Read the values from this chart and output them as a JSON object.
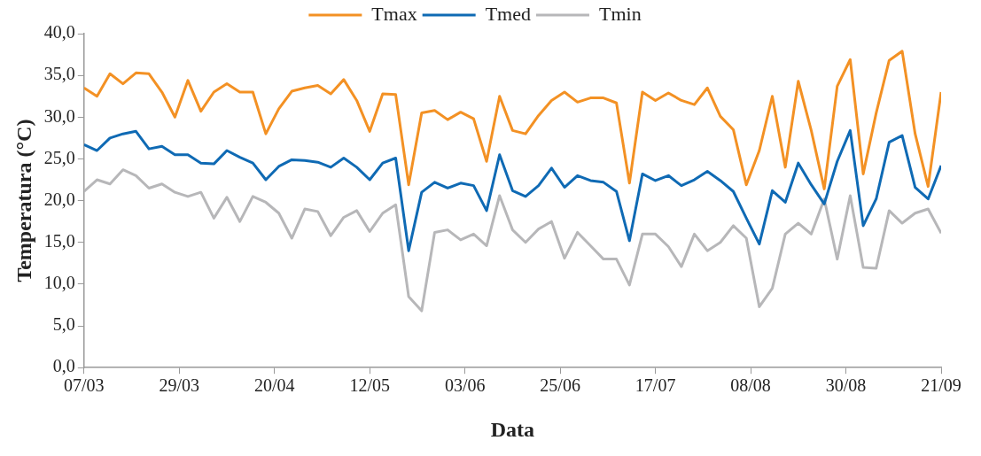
{
  "chart_data": {
    "type": "line",
    "xlabel": "Data",
    "ylabel": "Temperatura (°C)",
    "x": [
      "--03-07",
      "--03-10",
      "--03-13",
      "--03-16",
      "--03-19",
      "--03-22",
      "--03-25",
      "--03-28",
      "--03-31",
      "--04-03",
      "--04-06",
      "--04-09",
      "--04-12",
      "--04-15",
      "--04-18",
      "--04-21",
      "--04-24",
      "--04-27",
      "--04-30",
      "--05-03",
      "--05-06",
      "--05-09",
      "--05-12",
      "--05-15",
      "--05-18",
      "--05-21",
      "--05-24",
      "--05-27",
      "--05-30",
      "--06-02",
      "--06-05",
      "--06-08",
      "--06-11",
      "--06-14",
      "--06-17",
      "--06-20",
      "--06-23",
      "--06-26",
      "--06-29",
      "--07-02",
      "--07-05",
      "--07-08",
      "--07-11",
      "--07-14",
      "--07-17",
      "--07-20",
      "--07-23",
      "--07-26",
      "--07-29",
      "--08-01",
      "--08-04",
      "--08-07",
      "--08-10",
      "--08-13",
      "--08-16",
      "--08-19",
      "--08-22",
      "--08-25",
      "--08-28",
      "--08-31",
      "--09-03",
      "--09-06",
      "--09-09",
      "--09-12",
      "--09-15",
      "--09-18",
      "--09-21"
    ],
    "series": [
      {
        "name": "Tmax",
        "color": "#f39124",
        "values": [
          33.5,
          32.5,
          35.2,
          34.0,
          35.3,
          35.2,
          33.0,
          30.0,
          34.4,
          30.7,
          33.0,
          34.0,
          33.0,
          33.0,
          28.0,
          31.0,
          33.1,
          33.5,
          33.8,
          32.8,
          34.5,
          32.0,
          28.3,
          32.8,
          32.7,
          21.9,
          30.5,
          30.8,
          29.7,
          30.6,
          29.8,
          24.7,
          32.5,
          28.4,
          28.0,
          30.2,
          32.0,
          33.0,
          31.8,
          32.3,
          32.3,
          31.7,
          22.1,
          33.0,
          32.0,
          32.9,
          32.0,
          31.5,
          33.5,
          30.1,
          28.5,
          21.9,
          26.0,
          32.5,
          24.0,
          34.3,
          28.4,
          21.4,
          33.7,
          36.9,
          23.2,
          30.5,
          36.8,
          37.9,
          28.0,
          21.7,
          33.0
        ]
      },
      {
        "name": "Tmed",
        "color": "#0f6ab4",
        "values": [
          26.7,
          26.0,
          27.5,
          28.0,
          28.3,
          26.2,
          26.5,
          25.5,
          25.5,
          24.5,
          24.4,
          26.0,
          25.2,
          24.5,
          22.5,
          24.1,
          24.9,
          24.8,
          24.6,
          24.0,
          25.1,
          24.0,
          22.5,
          24.5,
          25.1,
          14.0,
          21.0,
          22.2,
          21.5,
          22.1,
          21.8,
          18.8,
          25.5,
          21.2,
          20.5,
          21.8,
          23.9,
          21.6,
          23.0,
          22.4,
          22.2,
          21.1,
          15.2,
          23.2,
          22.4,
          23.0,
          21.8,
          22.5,
          23.5,
          22.4,
          21.1,
          17.9,
          14.8,
          21.2,
          19.8,
          24.5,
          21.9,
          19.6,
          24.7,
          28.4,
          17.0,
          20.2,
          27.0,
          27.8,
          21.6,
          20.2,
          24.2
        ]
      },
      {
        "name": "Tmin",
        "color": "#b7b7b9",
        "values": [
          21.1,
          22.5,
          22.0,
          23.7,
          23.0,
          21.5,
          22.0,
          21.0,
          20.5,
          21.0,
          17.9,
          20.4,
          17.5,
          20.5,
          19.8,
          18.5,
          15.5,
          19.0,
          18.7,
          15.8,
          18.0,
          18.8,
          16.3,
          18.5,
          19.5,
          8.5,
          6.8,
          16.2,
          16.5,
          15.3,
          16.0,
          14.6,
          20.6,
          16.5,
          15.0,
          16.6,
          17.5,
          13.1,
          16.2,
          14.6,
          13.0,
          13.0,
          9.9,
          16.0,
          16.0,
          14.5,
          12.1,
          16.0,
          14.0,
          15.0,
          17.0,
          15.5,
          7.3,
          9.5,
          16.0,
          17.3,
          16.0,
          20.2,
          13.0,
          20.6,
          12.0,
          11.9,
          18.8,
          17.3,
          18.5,
          19.0,
          16.1
        ]
      }
    ],
    "xlim": [
      "--03-07",
      "--09-21"
    ],
    "xticks": [
      {
        "value": "--03-07",
        "label": "07/03"
      },
      {
        "value": "--03-29",
        "label": "29/03"
      },
      {
        "value": "--04-20",
        "label": "20/04"
      },
      {
        "value": "--05-12",
        "label": "12/05"
      },
      {
        "value": "--06-03",
        "label": "03/06"
      },
      {
        "value": "--06-25",
        "label": "25/06"
      },
      {
        "value": "--07-17",
        "label": "17/07"
      },
      {
        "value": "--08-08",
        "label": "08/08"
      },
      {
        "value": "--08-30",
        "label": "30/08"
      },
      {
        "value": "--09-21",
        "label": "21/09"
      }
    ],
    "ylim": [
      0,
      40
    ],
    "yticks": [
      {
        "value": 0,
        "label": "0,0"
      },
      {
        "value": 5,
        "label": "5,0"
      },
      {
        "value": 10,
        "label": "10,0"
      },
      {
        "value": 15,
        "label": "15,0"
      },
      {
        "value": 20,
        "label": "20,0"
      },
      {
        "value": 25,
        "label": "25,0"
      },
      {
        "value": 30,
        "label": "30,0"
      },
      {
        "value": 35,
        "label": "35,0"
      },
      {
        "value": 40,
        "label": "40,0"
      }
    ],
    "grid": false,
    "legend": "top",
    "marker": "none",
    "line_style": "solid"
  }
}
